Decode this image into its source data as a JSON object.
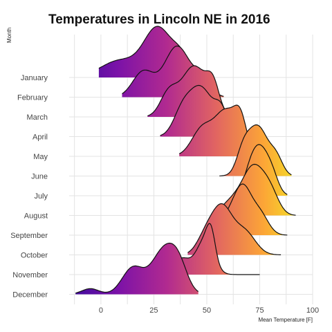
{
  "chart_data": {
    "type": "ridgeline",
    "title": "Temperatures in Lincoln NE in 2016",
    "xlabel": "Mean Temperature [F]",
    "ylabel": "Month",
    "xlim": [
      -15,
      100
    ],
    "xticks": [
      0,
      25,
      50,
      75,
      100
    ],
    "categories": [
      "January",
      "February",
      "March",
      "April",
      "May",
      "June",
      "July",
      "August",
      "September",
      "October",
      "November",
      "December"
    ],
    "grid": true,
    "legend": "none",
    "colormap": "plasma",
    "color_stops": [
      "#3b0a9c",
      "#7b12a8",
      "#b12a90",
      "#e16462",
      "#fca636",
      "#f0f921"
    ],
    "series": [
      {
        "name": "January",
        "range": [
          -1,
          49
        ],
        "peaks": [
          [
            9,
            9,
            0.35
          ],
          [
            27,
            6.5,
            1.0
          ],
          [
            38,
            4,
            0.35
          ]
        ]
      },
      {
        "name": "February",
        "range": [
          10,
          58
        ],
        "peaks": [
          [
            20,
            5,
            0.45
          ],
          [
            36,
            6,
            0.9
          ],
          [
            48,
            4,
            0.3
          ]
        ]
      },
      {
        "name": "March",
        "range": [
          22,
          60
        ],
        "peaks": [
          [
            32,
            4,
            0.4
          ],
          [
            44,
            6,
            0.9
          ],
          [
            53,
            3,
            0.45
          ]
        ]
      },
      {
        "name": "April",
        "range": [
          28,
          63
        ],
        "peaks": [
          [
            38,
            4,
            0.35
          ],
          [
            47,
            6,
            0.95
          ],
          [
            57,
            3,
            0.4
          ]
        ]
      },
      {
        "name": "May",
        "range": [
          37,
          73
        ],
        "peaks": [
          [
            48,
            5,
            0.45
          ],
          [
            59,
            5,
            0.7
          ],
          [
            66,
            3,
            0.5
          ]
        ]
      },
      {
        "name": "June",
        "range": [
          56,
          90
        ],
        "peaks": [
          [
            67,
            3,
            0.35
          ],
          [
            74,
            5,
            1.0
          ],
          [
            83,
            3,
            0.3
          ]
        ]
      },
      {
        "name": "July",
        "range": [
          64,
          88
        ],
        "peaks": [
          [
            70,
            3,
            0.3
          ],
          [
            75,
            4,
            1.0
          ],
          [
            81,
            3,
            0.35
          ]
        ]
      },
      {
        "name": "August",
        "range": [
          53,
          92
        ],
        "peaks": [
          [
            62,
            5,
            0.3
          ],
          [
            72,
            5,
            1.0
          ],
          [
            80,
            4,
            0.45
          ]
        ]
      },
      {
        "name": "September",
        "range": [
          54,
          88
        ],
        "peaks": [
          [
            60,
            4,
            0.35
          ],
          [
            67,
            4,
            0.95
          ],
          [
            75,
            4,
            0.45
          ]
        ]
      },
      {
        "name": "October",
        "range": [
          41,
          85
        ],
        "peaks": [
          [
            49,
            4,
            0.3
          ],
          [
            57,
            5,
            0.95
          ],
          [
            68,
            5,
            0.45
          ]
        ]
      },
      {
        "name": "November",
        "range": [
          33,
          75
        ],
        "peaks": [
          [
            38,
            4,
            0.4
          ],
          [
            49,
            4,
            0.85
          ],
          [
            52,
            2,
            0.6
          ]
        ]
      },
      {
        "name": "December",
        "range": [
          -12,
          46
        ],
        "peaks": [
          [
            -5,
            4,
            0.12
          ],
          [
            15,
            5,
            0.55
          ],
          [
            30,
            6,
            0.95
          ],
          [
            37,
            4,
            0.4
          ]
        ]
      }
    ]
  }
}
